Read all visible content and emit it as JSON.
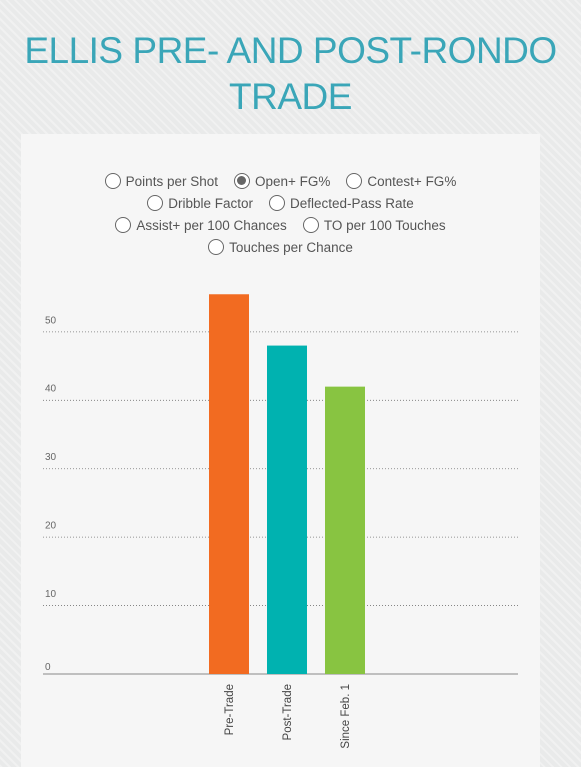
{
  "title": "ELLIS PRE- AND POST-RONDO TRADE",
  "options": [
    [
      {
        "label": "Points per Shot",
        "checked": false
      },
      {
        "label": "Open+ FG%",
        "checked": true
      },
      {
        "label": "Contest+ FG%",
        "checked": false
      }
    ],
    [
      {
        "label": "Dribble Factor",
        "checked": false
      },
      {
        "label": "Deflected-Pass Rate",
        "checked": false
      }
    ],
    [
      {
        "label": "Assist+ per 100 Chances",
        "checked": false
      },
      {
        "label": "TO per 100 Touches",
        "checked": false
      }
    ],
    [
      {
        "label": "Touches per Chance",
        "checked": false
      }
    ]
  ],
  "chart_data": {
    "type": "bar",
    "title": "",
    "xlabel": "",
    "ylabel": "",
    "categories": [
      "Pre-Trade",
      "Post-Trade",
      "Since Feb. 1"
    ],
    "values": [
      55.5,
      48,
      42
    ],
    "colors": [
      "#f26b21",
      "#00b2b0",
      "#88c441"
    ],
    "ylim": [
      0,
      57
    ],
    "yticks": [
      0,
      10,
      20,
      30,
      40,
      50
    ],
    "grid": true,
    "legend": "none"
  }
}
